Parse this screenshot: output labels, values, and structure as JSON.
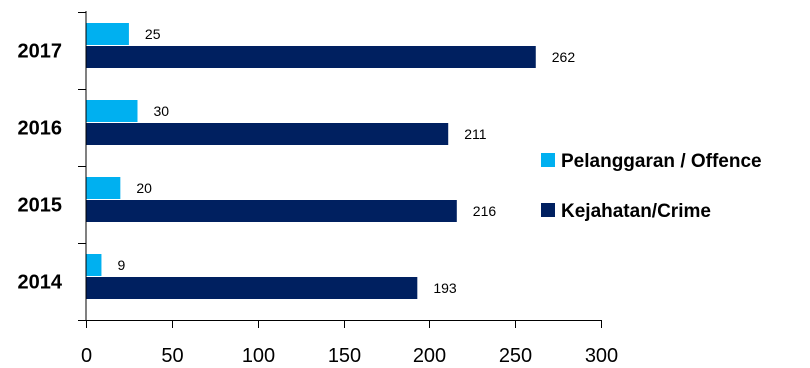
{
  "chart_data": {
    "type": "bar",
    "orientation": "horizontal",
    "categories": [
      "2017",
      "2016",
      "2015",
      "2014"
    ],
    "series": [
      {
        "name": "Pelanggaran / Offence",
        "color": "#00b0f0",
        "values": [
          25,
          30,
          20,
          9
        ]
      },
      {
        "name": "Kejahatan/Crime",
        "color": "#002060",
        "values": [
          262,
          211,
          216,
          193
        ]
      }
    ],
    "x_ticks": [
      "0",
      "50",
      "100",
      "150",
      "200",
      "250",
      "300"
    ],
    "xlim": [
      0,
      300
    ],
    "grid": false,
    "legend_position": "right"
  }
}
